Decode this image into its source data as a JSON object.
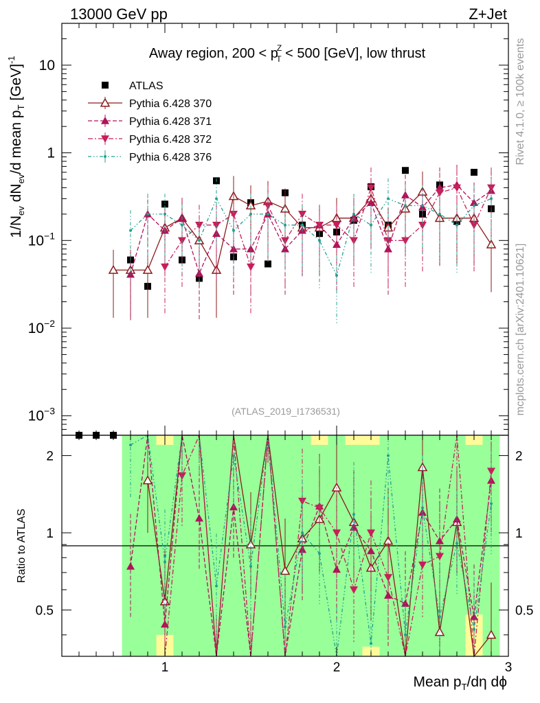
{
  "header": {
    "left": "13000 GeV pp",
    "right": "Z+Jet"
  },
  "side_labels": {
    "rivet": "Rivet 4.1.0, ≥ 100k events",
    "mcplots": "mcplots.cern.ch [arXiv:2401.10621]"
  },
  "watermark": "(ATLAS_2019_I1736531)",
  "chart_data": [
    {
      "type": "scatter",
      "panel": "main",
      "title": "Away region, 200 < pT^Z < 500 [GeV], low thrust",
      "title_parts": {
        "a": "Away region, 200 < p",
        "sup": "Z",
        "sub": "T",
        "b": " < 500 [GeV], low thrust"
      },
      "xlabel": "Mean pT/dη dϕ",
      "xlabel_parts": {
        "a": "Mean p",
        "sub": "T",
        "b": "/dη dϕ"
      },
      "ylabel": "1/Nev dNev/d mean pT [GeV]^-1",
      "ylabel_parts": {
        "a": "1/N",
        "s1": "ev",
        "b": " dN",
        "s2": "ev",
        "c": "/d mean p",
        "s3": "T",
        "d": " [GeV]",
        "sup": "-1"
      },
      "xlim": [
        0.4,
        3.0
      ],
      "ylim": [
        0.0006,
        30
      ],
      "yscale": "log",
      "x_ticks": [
        1,
        2,
        3
      ],
      "y_ticks": [
        {
          "v": 0.001,
          "base": "10",
          "exp": "−3"
        },
        {
          "v": 0.01,
          "base": "10",
          "exp": "−2"
        },
        {
          "v": 0.1,
          "base": "10",
          "exp": "−1"
        },
        {
          "v": 1,
          "base": "1",
          "exp": ""
        },
        {
          "v": 10,
          "base": "10",
          "exp": ""
        }
      ],
      "x": [
        0.5,
        0.6,
        0.7,
        0.8,
        0.9,
        1.0,
        1.1,
        1.2,
        1.3,
        1.4,
        1.5,
        1.6,
        1.7,
        1.8,
        1.9,
        2.0,
        2.1,
        2.2,
        2.3,
        2.4,
        2.5,
        2.6,
        2.7,
        2.8,
        2.9
      ],
      "legend": "top-left",
      "series": [
        {
          "name": "ATLAS",
          "color": "#000000",
          "marker": "square",
          "values": [
            0.0006,
            0.0006,
            0.0006,
            0.06,
            0.03,
            0.26,
            0.06,
            0.037,
            0.48,
            0.065,
            0.27,
            0.054,
            0.35,
            0.15,
            0.12,
            0.125,
            0.17,
            0.41,
            0.15,
            0.63,
            0.2,
            0.43,
            0.165,
            0.6,
            0.23
          ]
        },
        {
          "name": "Pythia 6.428 370",
          "color": "#8b1a1a",
          "marker": "triangle-open",
          "line": "solid",
          "values": [
            null,
            null,
            0.046,
            0.046,
            0.046,
            0.14,
            0.18,
            0.1,
            0.046,
            0.32,
            0.25,
            0.28,
            0.23,
            0.14,
            0.14,
            0.18,
            0.18,
            0.3,
            0.14,
            0.23,
            0.36,
            0.18,
            0.18,
            0.18,
            0.09
          ]
        },
        {
          "name": "Pythia 6.428 371",
          "color": "#b0125a",
          "marker": "triangle-up",
          "line": "dashed",
          "values": [
            null,
            null,
            null,
            0.041,
            0.2,
            0.13,
            0.18,
            0.042,
            0.12,
            0.08,
            0.08,
            0.2,
            0.08,
            0.13,
            0.15,
            0.09,
            0.18,
            0.27,
            0.08,
            0.33,
            0.24,
            0.4,
            0.43,
            0.27,
            0.37
          ]
        },
        {
          "name": "Pythia 6.428 372",
          "color": "#c81e5a",
          "marker": "triangle-down",
          "line": "dashdot",
          "values": [
            null,
            null,
            null,
            null,
            null,
            0.05,
            0.1,
            0.15,
            0.15,
            0.2,
            0.05,
            0.25,
            0.1,
            0.2,
            0.15,
            0.15,
            0.1,
            0.4,
            0.1,
            0.1,
            0.15,
            0.35,
            0.4,
            0.15,
            0.4
          ]
        },
        {
          "name": "Pythia 6.428 376",
          "color": "#20a090",
          "marker": "dot",
          "line": "dashdotdot",
          "values": [
            null,
            null,
            null,
            0.13,
            0.2,
            0.2,
            0.15,
            0.1,
            0.3,
            0.13,
            0.2,
            0.2,
            0.15,
            0.15,
            0.1,
            0.04,
            0.2,
            0.15,
            0.3,
            0.25,
            0.25,
            0.2,
            0.15,
            0.25,
            0.3
          ]
        }
      ]
    },
    {
      "type": "line",
      "panel": "ratio",
      "ylabel": "Ratio to ATLAS",
      "xlabel": "Mean pT/dη dϕ",
      "xlim": [
        0.4,
        3.0
      ],
      "ylim": [
        0.33,
        2.4
      ],
      "yscale": "log",
      "y_ticks": [
        0.5,
        1,
        2
      ],
      "y_tick_labels": [
        "0.5",
        "1",
        "2"
      ],
      "x": [
        0.8,
        0.9,
        1.0,
        1.1,
        1.2,
        1.3,
        1.4,
        1.5,
        1.6,
        1.7,
        1.8,
        1.9,
        2.0,
        2.1,
        2.2,
        2.3,
        2.4,
        2.5,
        2.6,
        2.7,
        2.8,
        2.9
      ],
      "bands": {
        "green_hi": [
          2.4,
          2.4,
          2.2,
          2.4,
          2.4,
          2.4,
          2.4,
          2.4,
          2.4,
          2.4,
          2.4,
          2.2,
          2.4,
          2.2,
          2.2,
          2.4,
          2.4,
          2.4,
          2.4,
          2.4,
          2.2,
          2.4
        ],
        "yellow_hi": [
          2.4,
          2.4,
          2.4,
          2.4,
          2.4,
          2.4,
          2.4,
          2.4,
          2.4,
          2.4,
          2.4,
          2.4,
          2.4,
          2.4,
          2.4,
          2.4,
          2.4,
          2.4,
          2.4,
          2.4,
          2.4,
          2.4
        ],
        "green_lo": [
          0.33,
          0.33,
          0.4,
          0.33,
          0.33,
          0.33,
          0.33,
          0.33,
          0.33,
          0.33,
          0.33,
          0.33,
          0.33,
          0.33,
          0.36,
          0.33,
          0.33,
          0.33,
          0.33,
          0.33,
          0.48,
          0.33
        ]
      },
      "series": [
        {
          "name": "Pythia 6.428 370",
          "color": "#8b1a1a",
          "marker": "triangle-open",
          "line": "solid",
          "values": [
            null,
            1.6,
            0.54,
            3.0,
            3.0,
            0.3,
            4.9,
            0.9,
            4.0,
            0.71,
            0.95,
            1.13,
            1.5,
            1.1,
            0.73,
            0.93,
            0.3,
            1.8,
            0.41,
            1.1,
            0.3,
            0.4
          ]
        },
        {
          "name": "Pythia 6.428 371",
          "color": "#b0125a",
          "marker": "triangle-up",
          "line": "dashed",
          "values": [
            0.74,
            3.0,
            0.44,
            3.0,
            1.14,
            0.3,
            1.26,
            0.3,
            3.0,
            0.3,
            0.86,
            1.27,
            0.72,
            1.05,
            0.85,
            0.57,
            0.53,
            1.2,
            0.93,
            1.13,
            0.47,
            1.6
          ]
        },
        {
          "name": "Pythia 6.428 372",
          "color": "#c81e5a",
          "marker": "triangle-down",
          "line": "dashdot",
          "values": [
            null,
            null,
            0.3,
            1.67,
            3.0,
            0.3,
            3.0,
            0.3,
            3.0,
            0.3,
            1.33,
            1.25,
            1.0,
            0.6,
            1.0,
            0.67,
            0.3,
            0.75,
            0.81,
            2.4,
            0.25,
            1.74
          ]
        },
        {
          "name": "Pythia 6.428 376",
          "color": "#20a090",
          "marker": "dot",
          "line": "dashdotdot",
          "values": [
            2.2,
            3.0,
            0.77,
            2.5,
            2.7,
            0.62,
            2.0,
            0.74,
            3.7,
            0.43,
            1.0,
            0.83,
            0.32,
            1.18,
            0.37,
            2.0,
            0.4,
            1.25,
            0.47,
            0.91,
            0.42,
            1.3
          ]
        }
      ]
    }
  ]
}
